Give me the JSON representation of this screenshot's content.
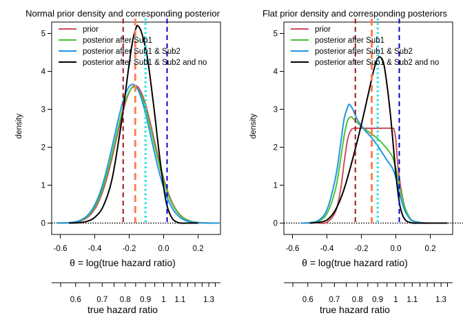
{
  "chart_data": [
    {
      "type": "line",
      "title": "Normal prior density and corresponding posterior",
      "xlabel": "θ = log(true hazard ratio)",
      "ylabel": "density",
      "x2label": "true hazard ratio",
      "xlim": [
        -0.65,
        0.33
      ],
      "ylim": [
        -0.3,
        5.3
      ],
      "xticks": [
        "-0.6",
        "-0.4",
        "-0.2",
        "0.0",
        "0.2"
      ],
      "xtick_values": [
        -0.6,
        -0.4,
        -0.2,
        0.0,
        0.2
      ],
      "yticks": [
        "0",
        "1",
        "2",
        "3",
        "4",
        "5"
      ],
      "ytick_values": [
        0,
        1,
        2,
        3,
        4,
        5
      ],
      "x2ticks": [
        "0.6",
        "0.7",
        "0.8",
        "0.9",
        "1",
        "1.1",
        "1.3"
      ],
      "x2tick_values": [
        0.6,
        0.7,
        0.8,
        0.9,
        1.0,
        1.1,
        1.3
      ],
      "x2minor_values": [
        0.55,
        0.65,
        0.75,
        0.85,
        0.95,
        1.05,
        1.15,
        1.2,
        1.25,
        1.35
      ],
      "legend_position": "top-left",
      "series": [
        {
          "name": "prior",
          "color": "#cd4e5a",
          "kind": "normal",
          "mean": -0.165,
          "sd": 0.11
        },
        {
          "name": "posterior after Sub1",
          "color": "#4cbf39",
          "kind": "normal",
          "mean": -0.17,
          "sd": 0.111
        },
        {
          "name": "posterior after Sub1 & Sub2",
          "color": "#2095de",
          "kind": "normal",
          "mean": -0.18,
          "sd": 0.109
        },
        {
          "name": "posterior after Sub1 & Sub2 and no",
          "color": "#000000",
          "kind": "skewnormal",
          "x": [
            -0.55,
            -0.5,
            -0.45,
            -0.4,
            -0.35,
            -0.3,
            -0.25,
            -0.22,
            -0.2,
            -0.18,
            -0.16,
            -0.15,
            -0.13,
            -0.1,
            -0.08,
            -0.05,
            -0.03,
            0.0,
            0.02,
            0.05,
            0.08,
            0.1,
            0.15,
            0.2
          ],
          "y": [
            0.0,
            0.01,
            0.04,
            0.15,
            0.45,
            1.15,
            2.5,
            3.5,
            4.2,
            4.8,
            5.15,
            5.2,
            5.05,
            4.5,
            3.9,
            2.8,
            2.0,
            0.95,
            0.45,
            0.12,
            0.02,
            0.0,
            0.0,
            0.0
          ]
        }
      ],
      "vlines": [
        {
          "x": -0.235,
          "color": "#a0141c",
          "style": "dashed"
        },
        {
          "x": -0.165,
          "color": "#ff7f50",
          "style": "dashed-thick"
        },
        {
          "x": -0.105,
          "color": "#22e6e6",
          "style": "dotted"
        },
        {
          "x": 0.02,
          "color": "#0000cd",
          "style": "dashed"
        }
      ]
    },
    {
      "type": "line",
      "title": "Flat prior density and corresponding posteriors",
      "xlabel": "θ = log(true hazard ratio)",
      "ylabel": "density",
      "x2label": "true hazard ratio",
      "xlim": [
        -0.65,
        0.33
      ],
      "ylim": [
        -0.3,
        5.3
      ],
      "xticks": [
        "-0.6",
        "-0.4",
        "-0.2",
        "0.0",
        "0.2"
      ],
      "xtick_values": [
        -0.6,
        -0.4,
        -0.2,
        0.0,
        0.2
      ],
      "yticks": [
        "0",
        "1",
        "2",
        "3",
        "4",
        "5"
      ],
      "ytick_values": [
        0,
        1,
        2,
        3,
        4,
        5
      ],
      "x2ticks": [
        "0.6",
        "0.7",
        "0.8",
        "0.9",
        "1",
        "1.1",
        "1.3"
      ],
      "x2tick_values": [
        0.6,
        0.7,
        0.8,
        0.9,
        1.0,
        1.1,
        1.3
      ],
      "x2minor_values": [
        0.55,
        0.65,
        0.75,
        0.85,
        0.95,
        1.05,
        1.15,
        1.2,
        1.25,
        1.35
      ],
      "legend_position": "top-left",
      "series": [
        {
          "name": "prior",
          "color": "#cd4e5a",
          "kind": "points",
          "x": [
            -0.45,
            -0.4,
            -0.35,
            -0.32,
            -0.3,
            -0.28,
            -0.26,
            -0.24,
            -0.2,
            -0.1,
            -0.02,
            -0.01,
            0.0,
            0.01,
            0.03,
            0.06,
            0.1,
            0.15,
            0.2
          ],
          "y": [
            0.0,
            0.02,
            0.3,
            0.9,
            1.6,
            2.2,
            2.45,
            2.5,
            2.5,
            2.5,
            2.5,
            2.45,
            2.2,
            1.6,
            0.9,
            0.3,
            0.05,
            0.0,
            0.0
          ]
        },
        {
          "name": "posterior after Sub1",
          "color": "#4cbf39",
          "kind": "points",
          "x": [
            -0.55,
            -0.5,
            -0.45,
            -0.4,
            -0.35,
            -0.32,
            -0.3,
            -0.28,
            -0.26,
            -0.24,
            -0.2,
            -0.15,
            -0.1,
            -0.05,
            -0.02,
            0.0,
            0.02,
            0.05,
            0.08,
            0.1,
            0.15,
            0.2,
            0.3
          ],
          "y": [
            0.0,
            0.01,
            0.05,
            0.25,
            0.9,
            1.7,
            2.3,
            2.7,
            2.8,
            2.72,
            2.55,
            2.38,
            2.2,
            1.95,
            1.75,
            1.45,
            1.0,
            0.45,
            0.15,
            0.06,
            0.01,
            0.0,
            0.0
          ]
        },
        {
          "name": "posterior after Sub1 & Sub2",
          "color": "#2095de",
          "kind": "points",
          "x": [
            -0.55,
            -0.5,
            -0.45,
            -0.4,
            -0.35,
            -0.32,
            -0.3,
            -0.28,
            -0.27,
            -0.25,
            -0.22,
            -0.18,
            -0.14,
            -0.1,
            -0.05,
            -0.02,
            0.0,
            0.02,
            0.05,
            0.08,
            0.1,
            0.15,
            0.2,
            0.3
          ],
          "y": [
            0.0,
            0.01,
            0.07,
            0.35,
            1.2,
            2.1,
            2.75,
            3.05,
            3.13,
            3.0,
            2.7,
            2.45,
            2.25,
            2.0,
            1.65,
            1.45,
            1.2,
            0.8,
            0.35,
            0.12,
            0.05,
            0.01,
            0.0,
            0.0
          ]
        },
        {
          "name": "posterior after Sub1 & Sub2 and no",
          "color": "#000000",
          "kind": "points",
          "x": [
            -0.5,
            -0.45,
            -0.4,
            -0.35,
            -0.3,
            -0.25,
            -0.2,
            -0.16,
            -0.13,
            -0.11,
            -0.09,
            -0.07,
            -0.05,
            -0.03,
            -0.01,
            0.0,
            0.02,
            0.04,
            0.06,
            0.08,
            0.1,
            0.15,
            0.2,
            0.3
          ],
          "y": [
            0.0,
            0.02,
            0.08,
            0.35,
            0.9,
            1.7,
            2.6,
            3.4,
            4.0,
            4.3,
            4.38,
            4.2,
            3.6,
            2.8,
            1.8,
            1.3,
            0.55,
            0.2,
            0.06,
            0.02,
            0.0,
            0.0,
            0.0,
            0.0
          ]
        }
      ],
      "vlines": [
        {
          "x": -0.235,
          "color": "#a0141c",
          "style": "dashed"
        },
        {
          "x": -0.14,
          "color": "#ff7f50",
          "style": "dashed-thick"
        },
        {
          "x": -0.105,
          "color": "#22e6e6",
          "style": "dotted"
        },
        {
          "x": 0.02,
          "color": "#0000cd",
          "style": "dashed"
        }
      ]
    }
  ]
}
